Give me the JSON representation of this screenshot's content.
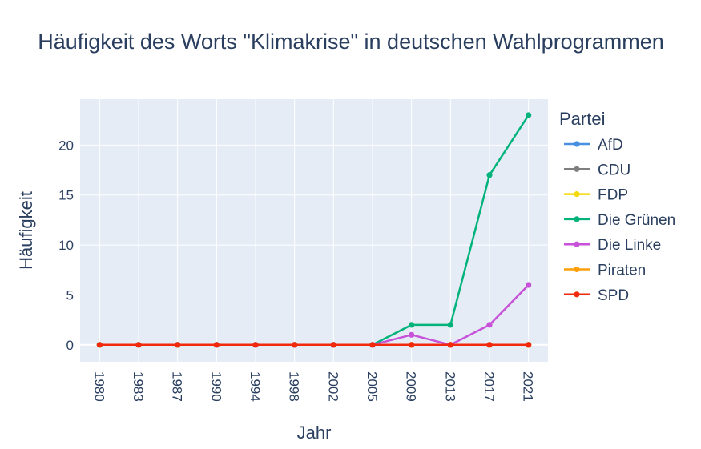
{
  "chart_data": {
    "type": "line",
    "title": "Häufigkeit des Worts \"Klimakrise\" in deutschen Wahlprogrammen",
    "xlabel": "Jahr",
    "ylabel": "Häufigkeit",
    "categories": [
      "1980",
      "1983",
      "1987",
      "1990",
      "1994",
      "1998",
      "2002",
      "2005",
      "2009",
      "2013",
      "2017",
      "2021"
    ],
    "ylim": [
      -1.7,
      24.6
    ],
    "yticks": [
      0,
      5,
      10,
      15,
      20
    ],
    "grid": true,
    "legend_title": "Partei",
    "legend_position": "right",
    "series": [
      {
        "name": "AfD",
        "color": "#4a90e2",
        "x": [
          "2013",
          "2017",
          "2021"
        ],
        "values": [
          0,
          0,
          0
        ]
      },
      {
        "name": "CDU",
        "color": "#7f7f7f",
        "x": [
          "1980",
          "1983",
          "1987",
          "1990",
          "1994",
          "1998",
          "2002",
          "2005",
          "2009",
          "2013",
          "2017",
          "2021"
        ],
        "values": [
          0,
          0,
          0,
          0,
          0,
          0,
          0,
          0,
          0,
          0,
          0,
          0
        ]
      },
      {
        "name": "FDP",
        "color": "#f5d90a",
        "x": [
          "1980",
          "1983",
          "1987",
          "1990",
          "1994",
          "1998",
          "2002",
          "2005",
          "2009",
          "2013",
          "2017",
          "2021"
        ],
        "values": [
          0,
          0,
          0,
          0,
          0,
          0,
          0,
          0,
          0,
          0,
          0,
          0
        ]
      },
      {
        "name": "Die Grünen",
        "color": "#00b37a",
        "x": [
          "1980",
          "1983",
          "1987",
          "1990",
          "1994",
          "1998",
          "2002",
          "2005",
          "2009",
          "2013",
          "2017",
          "2021"
        ],
        "values": [
          0,
          0,
          0,
          0,
          0,
          0,
          0,
          0,
          2,
          2,
          17,
          23
        ]
      },
      {
        "name": "Die Linke",
        "color": "#c752d9",
        "x": [
          "1990",
          "1994",
          "1998",
          "2002",
          "2005",
          "2009",
          "2013",
          "2017",
          "2021"
        ],
        "values": [
          0,
          0,
          0,
          0,
          0,
          1,
          0,
          2,
          6
        ]
      },
      {
        "name": "Piraten",
        "color": "#ff9f0a",
        "x": [
          "2009",
          "2013",
          "2017",
          "2021"
        ],
        "values": [
          0,
          0,
          0,
          0
        ]
      },
      {
        "name": "SPD",
        "color": "#f2290c",
        "x": [
          "1980",
          "1983",
          "1987",
          "1990",
          "1994",
          "1998",
          "2002",
          "2005",
          "2009",
          "2013",
          "2017",
          "2021"
        ],
        "values": [
          0,
          0,
          0,
          0,
          0,
          0,
          0,
          0,
          0,
          0,
          0,
          0
        ]
      }
    ]
  }
}
